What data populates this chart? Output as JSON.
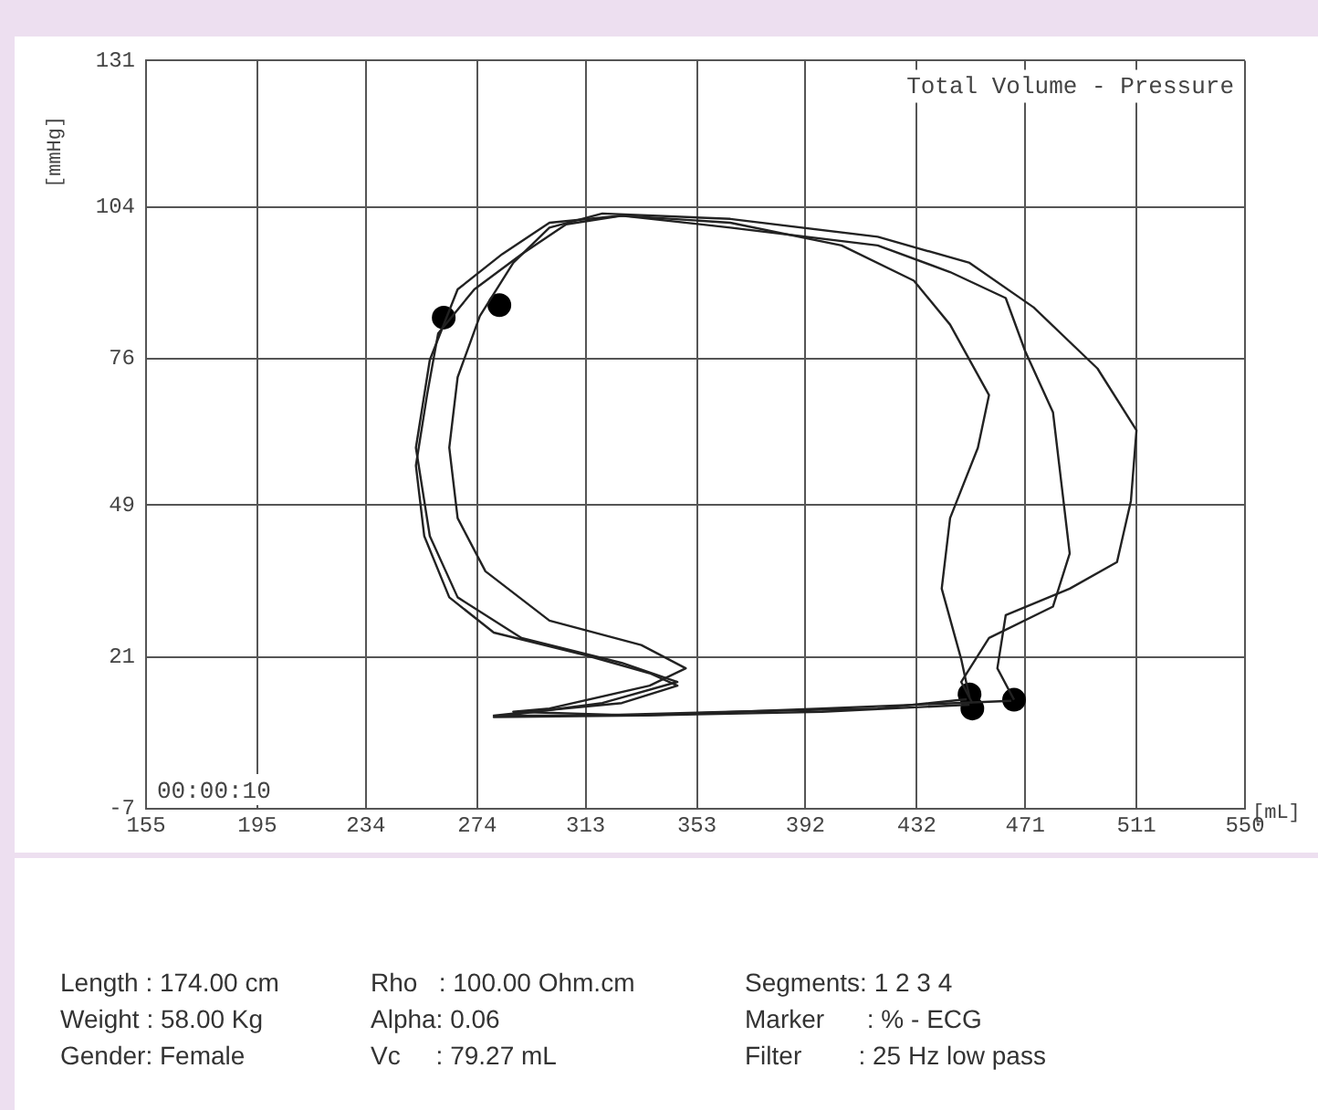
{
  "chart_data": {
    "type": "line",
    "title": "Total Volume - Pressure",
    "xlabel": "[mL]",
    "ylabel": "[mmHg]",
    "xlim": [
      155,
      550
    ],
    "xticks": [
      155,
      195,
      234,
      274,
      313,
      353,
      392,
      432,
      471,
      511,
      550
    ],
    "ylim": [
      -7,
      131
    ],
    "yticks": [
      -7,
      21,
      49,
      76,
      104,
      131
    ],
    "grid": true,
    "legend": false,
    "marker": "none",
    "line_style": "solid",
    "series": [
      {
        "color": "#222222",
        "x": [
          451,
          448,
          441,
          444,
          454,
          458,
          444,
          431,
          405,
          365,
          326,
          306,
          290,
          273,
          260,
          256,
          252,
          255,
          264,
          280,
          313,
          336,
          346,
          326,
          293,
          280,
          313,
          365,
          418,
          450
        ],
        "values": [
          13.5,
          20.6,
          33.6,
          46.6,
          59.6,
          69.3,
          82.3,
          90.4,
          96.9,
          101.1,
          102.4,
          100.8,
          95.3,
          88.8,
          80.7,
          69.3,
          56.3,
          43.3,
          32,
          25.5,
          21.3,
          18,
          15.7,
          12.5,
          10.9,
          10.2,
          10.2,
          10.9,
          11.5,
          13.2
        ]
      },
      {
        "color": "#222222",
        "x": [
          452,
          448,
          458,
          481,
          487,
          484,
          481,
          471,
          464,
          444,
          418,
          365,
          326,
          300,
          283,
          267,
          257,
          252,
          257,
          267,
          290,
          326,
          346,
          319,
          280,
          333,
          398,
          451
        ],
        "values": [
          12.5,
          16.4,
          24.5,
          30.3,
          40.1,
          53.1,
          66.1,
          77.4,
          87.2,
          92,
          96.9,
          100.2,
          102.4,
          101.1,
          95.3,
          88.8,
          75.8,
          59.6,
          43.3,
          32,
          24.5,
          19.9,
          16.4,
          12.5,
          9.9,
          10.2,
          10.9,
          12.2
        ]
      },
      {
        "color": "#222222",
        "x": [
          467,
          461,
          464,
          487,
          504,
          509,
          511,
          497,
          474,
          451,
          418,
          365,
          319,
          300,
          287,
          275,
          267,
          264,
          267,
          277,
          300,
          333,
          349,
          336,
          300,
          287,
          333,
          398,
          466
        ],
        "values": [
          13.1,
          18.9,
          28.7,
          33.6,
          38.5,
          49.8,
          62.8,
          74.2,
          85.5,
          93.7,
          98.5,
          101.8,
          102.8,
          100.2,
          93.7,
          83.9,
          72.6,
          59.6,
          46.6,
          36.8,
          27.7,
          23.2,
          18.9,
          15.7,
          11.5,
          10.9,
          10.2,
          11.5,
          12.9
        ]
      },
      {
        "type": "scatter",
        "marker": "circle",
        "color": "#000000",
        "x": [
          262,
          282,
          451,
          452,
          467
        ],
        "values": [
          83.6,
          85.9,
          14.1,
          11.5,
          13.1
        ]
      }
    ],
    "annotations": [
      "00:00:10",
      "Length : 174.00 cm",
      "Weight : 58.00 Kg",
      "Gender: Female",
      "Rho   : 100.00 Ohm.cm",
      "Alpha: 0.06",
      "Vc     : 79.27 mL",
      "Segments: 1 2 3 4",
      "Marker      : % - ECG",
      "Filter        : 25 Hz low pass"
    ]
  }
}
